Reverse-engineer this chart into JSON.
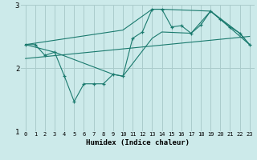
{
  "xlabel": "Humidex (Indice chaleur)",
  "bg_color": "#cceaea",
  "grid_color": "#aacccc",
  "line_color": "#1a7a6e",
  "xlim": [
    -0.5,
    23.5
  ],
  "ylim": [
    1.0,
    3.0
  ],
  "yticks": [
    1,
    2,
    3
  ],
  "xticks": [
    0,
    1,
    2,
    3,
    4,
    5,
    6,
    7,
    8,
    9,
    10,
    11,
    12,
    13,
    14,
    15,
    16,
    17,
    18,
    19,
    20,
    21,
    22,
    23
  ],
  "main_x": [
    0,
    1,
    2,
    3,
    4,
    5,
    6,
    7,
    8,
    9,
    10,
    11,
    12,
    13,
    14,
    15,
    16,
    17,
    18,
    19,
    20,
    21,
    22,
    23
  ],
  "main_y": [
    2.37,
    2.37,
    2.2,
    2.25,
    1.87,
    1.47,
    1.75,
    1.75,
    1.75,
    1.9,
    1.87,
    2.47,
    2.57,
    2.93,
    2.93,
    2.65,
    2.67,
    2.55,
    2.68,
    2.9,
    2.77,
    2.65,
    2.55,
    2.37
  ],
  "upper_x": [
    0,
    10,
    13,
    14,
    19,
    20,
    23
  ],
  "upper_y": [
    2.37,
    2.6,
    2.93,
    2.93,
    2.9,
    2.77,
    2.37
  ],
  "lower_x": [
    0,
    3,
    9,
    10,
    13,
    14,
    17,
    19,
    22,
    23
  ],
  "lower_y": [
    2.37,
    2.25,
    1.9,
    1.87,
    2.47,
    2.57,
    2.55,
    2.9,
    2.55,
    2.37
  ],
  "trend_x": [
    0,
    23
  ],
  "trend_y": [
    2.15,
    2.5
  ]
}
